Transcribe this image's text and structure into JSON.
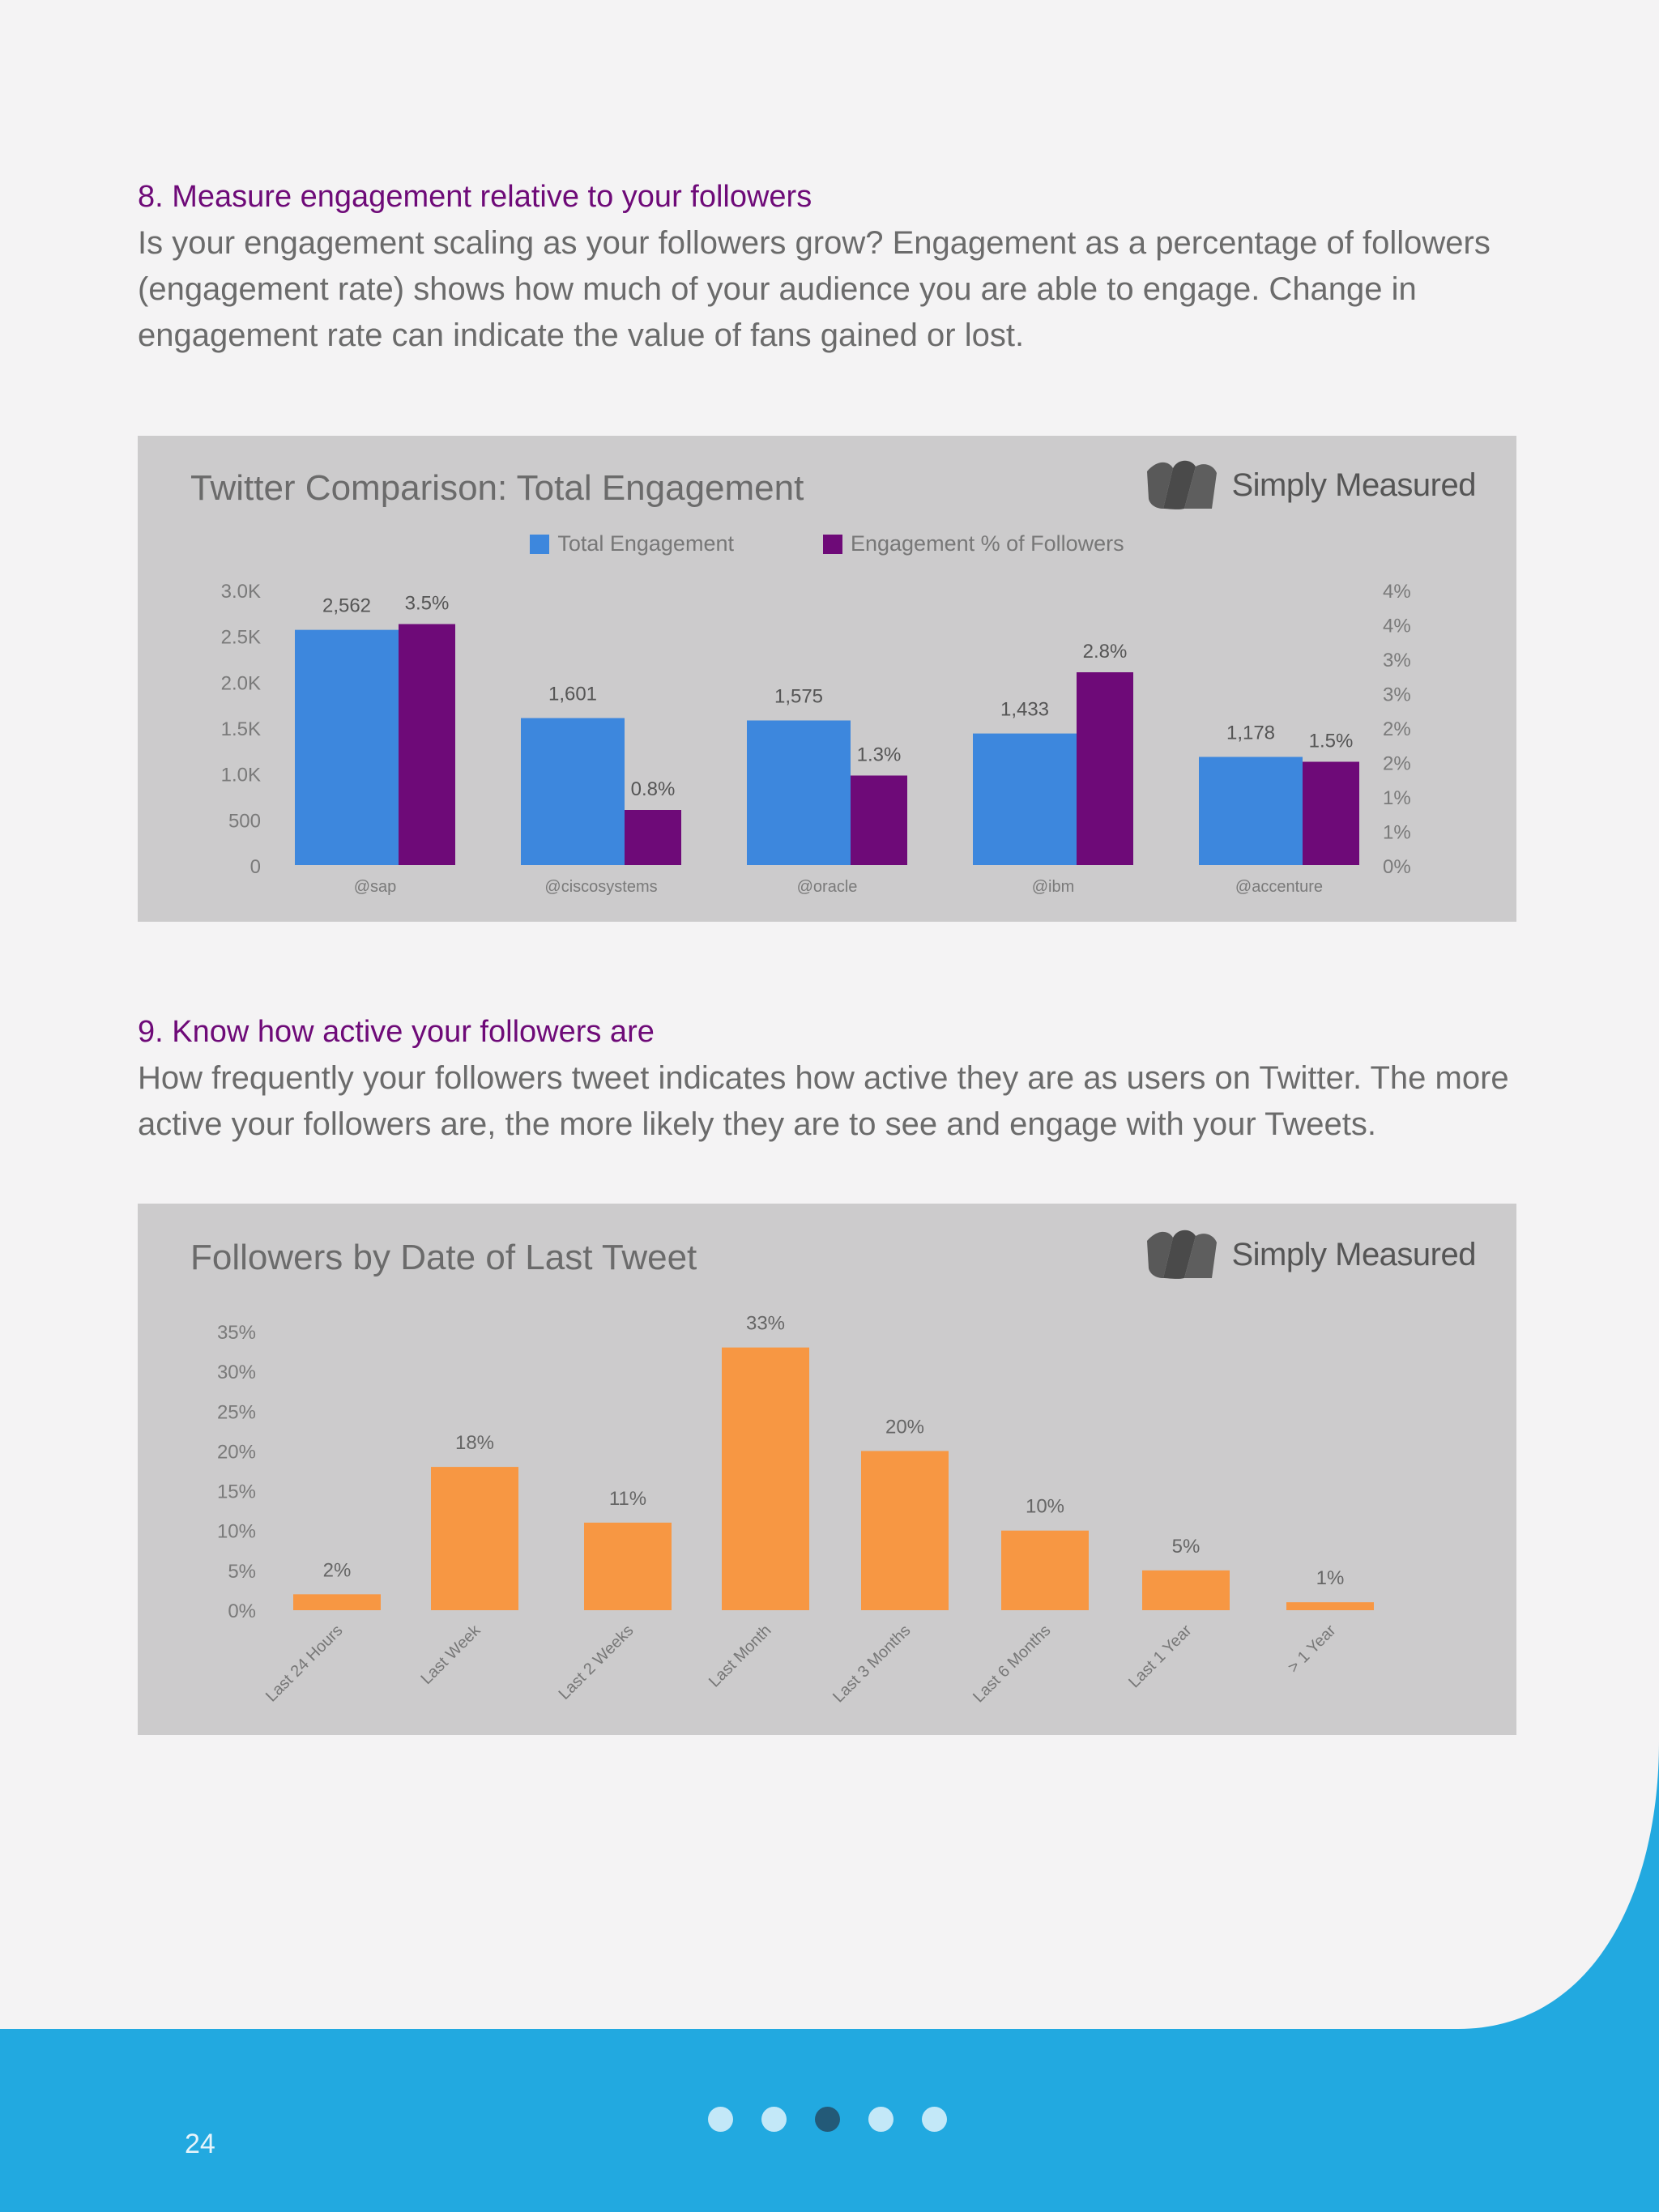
{
  "section8": {
    "title": "8. Measure engagement relative to your followers",
    "body": "Is your engagement scaling as your followers grow? Engagement as a percentage of followers (engagement rate) shows how much of your audience you are able to engage. Change in engagement rate can indicate the value of fans gained or lost."
  },
  "section9": {
    "title": "9. Know how active your followers are",
    "body": "How frequently your followers tweet indicates how active they are as users on Twitter. The more active your followers are, the more likely they are to see and engage with your Tweets."
  },
  "brand": {
    "name": "Simply Measured",
    "icon": "simply-measured-logo-icon"
  },
  "colors": {
    "purple": "#6e0a78",
    "blue": "#3d87dd",
    "orange": "#f79743",
    "panel": "#cccbcc",
    "footer": "#22a9e0"
  },
  "footer": {
    "page_number": "24",
    "dots": 5,
    "active_dot": 3
  },
  "chart_data": [
    {
      "type": "bar",
      "title": "Twitter Comparison: Total Engagement",
      "categories": [
        "@sap",
        "@ciscosystems",
        "@oracle",
        "@ibm",
        "@accenture"
      ],
      "series": [
        {
          "name": "Total Engagement",
          "color": "#3d87dd",
          "axis": "left",
          "values": [
            2562,
            1601,
            1575,
            1433,
            1178
          ],
          "labels": [
            "2,562",
            "1,601",
            "1,575",
            "1,433",
            "1,178"
          ]
        },
        {
          "name": "Engagement % of Followers",
          "color": "#6e0a78",
          "axis": "right",
          "values": [
            3.5,
            0.8,
            1.3,
            2.8,
            1.5
          ],
          "labels": [
            "3.5%",
            "0.8%",
            "1.3%",
            "2.8%",
            "1.5%"
          ]
        }
      ],
      "y_left_ticks": [
        "0",
        "500",
        "1.0K",
        "1.5K",
        "2.0K",
        "2.5K",
        "3.0K"
      ],
      "y_left_lim": [
        0,
        3000
      ],
      "y_right_ticks": [
        "0%",
        "1%",
        "1%",
        "2%",
        "2%",
        "3%",
        "3%",
        "4%",
        "4%"
      ],
      "y_right_lim": [
        0,
        4
      ],
      "legend": "top-center",
      "grid": false
    },
    {
      "type": "bar",
      "title": "Followers by Date of Last Tweet",
      "categories": [
        "Last 24 Hours",
        "Last Week",
        "Last 2 Weeks",
        "Last Month",
        "Last 3 Months",
        "Last 6 Months",
        "Last 1 Year",
        "> 1 Year"
      ],
      "values": [
        2,
        18,
        11,
        33,
        20,
        10,
        5,
        1
      ],
      "labels": [
        "2%",
        "18%",
        "11%",
        "33%",
        "20%",
        "10%",
        "5%",
        "1%"
      ],
      "color": "#f79743",
      "y_ticks": [
        "0%",
        "5%",
        "10%",
        "15%",
        "20%",
        "25%",
        "30%",
        "35%"
      ],
      "ylim": [
        0,
        35
      ],
      "grid": false
    }
  ]
}
